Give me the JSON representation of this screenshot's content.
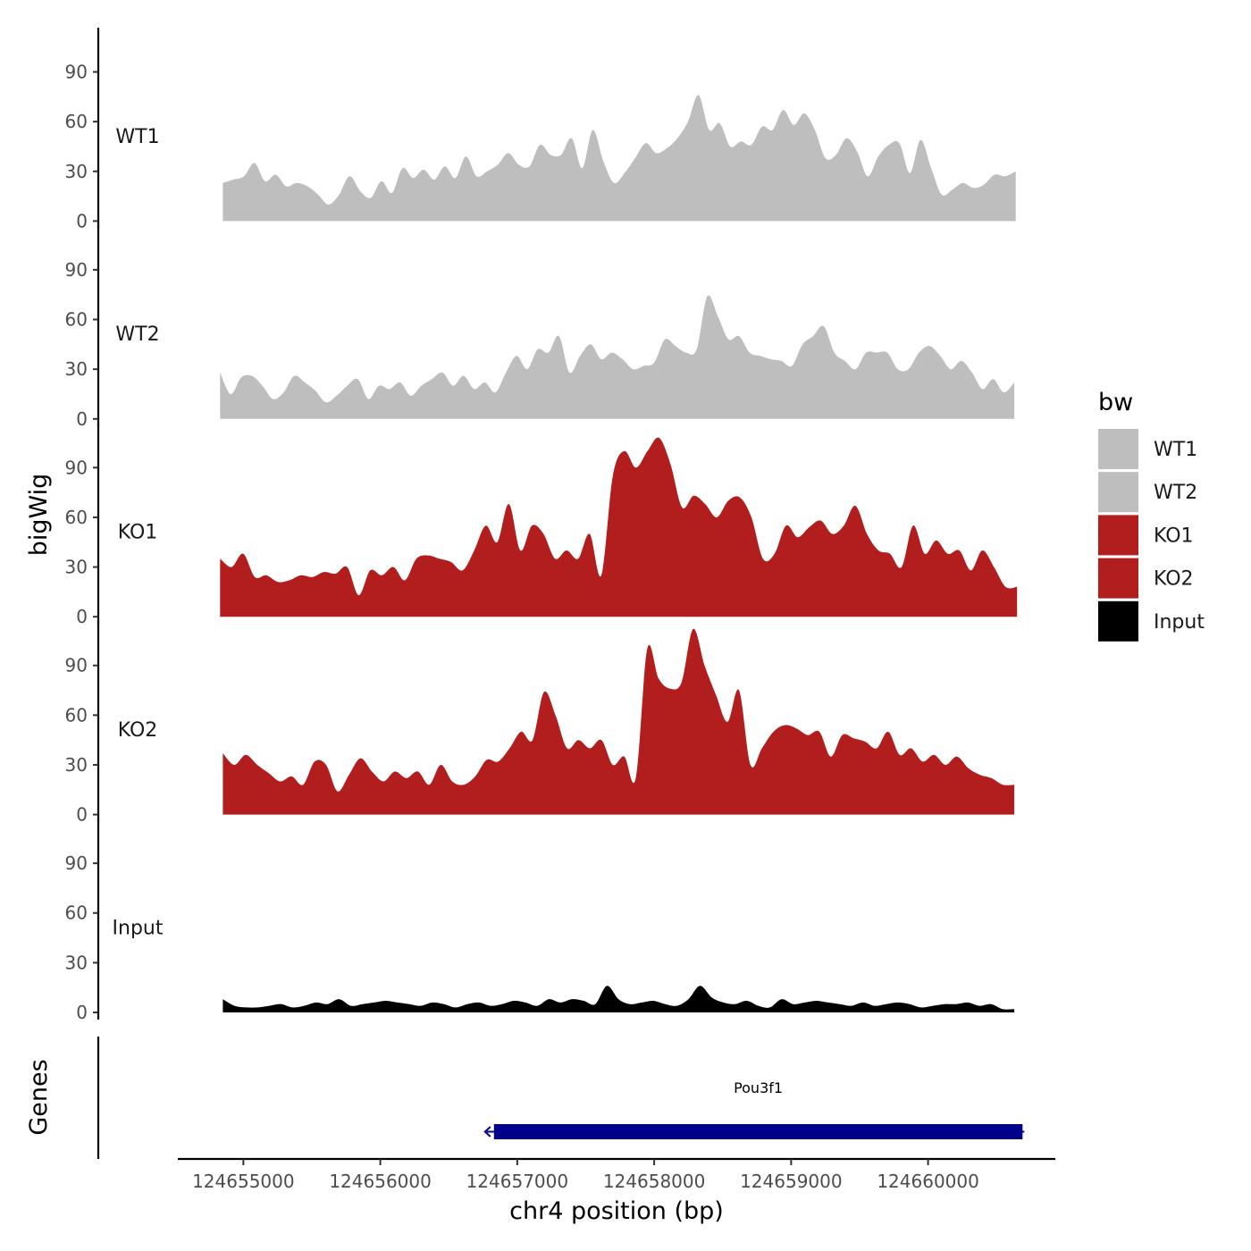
{
  "chart_data": {
    "type": "area",
    "chromosome": "chr4",
    "xlabel": "chr4 position (bp)",
    "ylabel": "bigWig",
    "gene_track_label": "Genes",
    "xlim": [
      124654500,
      124660900
    ],
    "ylim": [
      0,
      114
    ],
    "x_ticks": [
      124655000,
      124656000,
      124657000,
      124658000,
      124659000,
      124660000
    ],
    "y_ticks": [
      0,
      30,
      60,
      90
    ],
    "legend": {
      "title": "bw",
      "entries": [
        {
          "label": "WT1",
          "color": "#bebebe"
        },
        {
          "label": "WT2",
          "color": "#bebebe"
        },
        {
          "label": "KO1",
          "color": "#b21e1e"
        },
        {
          "label": "KO2",
          "color": "#b21e1e"
        },
        {
          "label": "Input",
          "color": "#000000"
        }
      ]
    },
    "series": [
      {
        "name": "WT1",
        "color": "#bebebe",
        "x_start": 124654850,
        "x_end": 124660640,
        "values": [
          23,
          25,
          27,
          35,
          24,
          28,
          21,
          23,
          21,
          16,
          10,
          16,
          27,
          18,
          14,
          24,
          17,
          32,
          26,
          31,
          25,
          33,
          26,
          39,
          27,
          30,
          34,
          41,
          34,
          33,
          46,
          40,
          40,
          50,
          32,
          55,
          36,
          23,
          29,
          38,
          47,
          41,
          44,
          50,
          60,
          76,
          55,
          59,
          45,
          48,
          46,
          57,
          55,
          67,
          58,
          65,
          55,
          38,
          40,
          50,
          42,
          27,
          39,
          46,
          47,
          29,
          49,
          32,
          16,
          19,
          23,
          20,
          22,
          28,
          27,
          30
        ]
      },
      {
        "name": "WT2",
        "color": "#bebebe",
        "x_start": 124654830,
        "x_end": 124660630,
        "values": [
          28,
          15,
          25,
          26,
          20,
          12,
          16,
          26,
          22,
          17,
          10,
          14,
          20,
          24,
          12,
          20,
          18,
          22,
          14,
          20,
          24,
          28,
          20,
          26,
          18,
          22,
          16,
          28,
          38,
          30,
          42,
          40,
          50,
          28,
          38,
          45,
          36,
          40,
          36,
          30,
          32,
          34,
          48,
          44,
          40,
          42,
          74,
          62,
          48,
          50,
          40,
          38,
          36,
          35,
          32,
          45,
          50,
          56,
          40,
          35,
          30,
          40,
          40,
          40,
          30,
          30,
          40,
          44,
          38,
          30,
          35,
          28,
          18,
          24,
          16,
          22
        ]
      },
      {
        "name": "KO1",
        "color": "#b21e1e",
        "x_start": 124654830,
        "x_end": 124660650,
        "values": [
          35,
          30,
          38,
          24,
          25,
          21,
          22,
          25,
          24,
          27,
          26,
          30,
          13,
          28,
          25,
          30,
          22,
          35,
          37,
          35,
          33,
          28,
          40,
          55,
          45,
          68,
          40,
          55,
          50,
          35,
          40,
          35,
          50,
          25,
          85,
          100,
          90,
          100,
          108,
          92,
          66,
          73,
          68,
          60,
          70,
          72,
          60,
          35,
          38,
          55,
          48,
          54,
          58,
          50,
          55,
          67,
          50,
          40,
          38,
          30,
          55,
          38,
          46,
          38,
          40,
          28,
          40,
          30,
          18,
          18
        ]
      },
      {
        "name": "KO2",
        "color": "#b21e1e",
        "x_start": 124654850,
        "x_end": 124660630,
        "values": [
          37,
          30,
          36,
          30,
          25,
          20,
          23,
          18,
          32,
          30,
          14,
          24,
          34,
          26,
          20,
          26,
          22,
          26,
          18,
          30,
          20,
          18,
          23,
          33,
          32,
          40,
          50,
          45,
          74,
          60,
          40,
          45,
          40,
          45,
          30,
          35,
          22,
          100,
          82,
          76,
          80,
          112,
          90,
          72,
          56,
          75,
          30,
          40,
          50,
          54,
          52,
          48,
          50,
          35,
          48,
          46,
          44,
          40,
          50,
          36,
          40,
          32,
          36,
          30,
          35,
          28,
          24,
          22,
          18,
          18
        ]
      },
      {
        "name": "Input",
        "color": "#000000",
        "x_start": 124654850,
        "x_end": 124660630,
        "values": [
          8,
          4,
          3,
          3,
          4,
          5,
          3,
          4,
          6,
          5,
          8,
          4,
          5,
          6,
          7,
          6,
          5,
          4,
          6,
          5,
          3,
          5,
          6,
          4,
          5,
          7,
          6,
          4,
          8,
          6,
          8,
          7,
          5,
          16,
          8,
          5,
          6,
          7,
          5,
          4,
          8,
          16,
          9,
          6,
          5,
          7,
          4,
          3,
          8,
          5,
          6,
          7,
          6,
          5,
          4,
          6,
          4,
          5,
          6,
          5,
          3,
          4,
          5,
          5,
          6,
          4,
          5,
          2,
          2
        ]
      }
    ],
    "genes": [
      {
        "name": "Pou3f1",
        "start": 124656830,
        "end": 124660690,
        "strand": "-",
        "color": "#00008b"
      }
    ]
  }
}
